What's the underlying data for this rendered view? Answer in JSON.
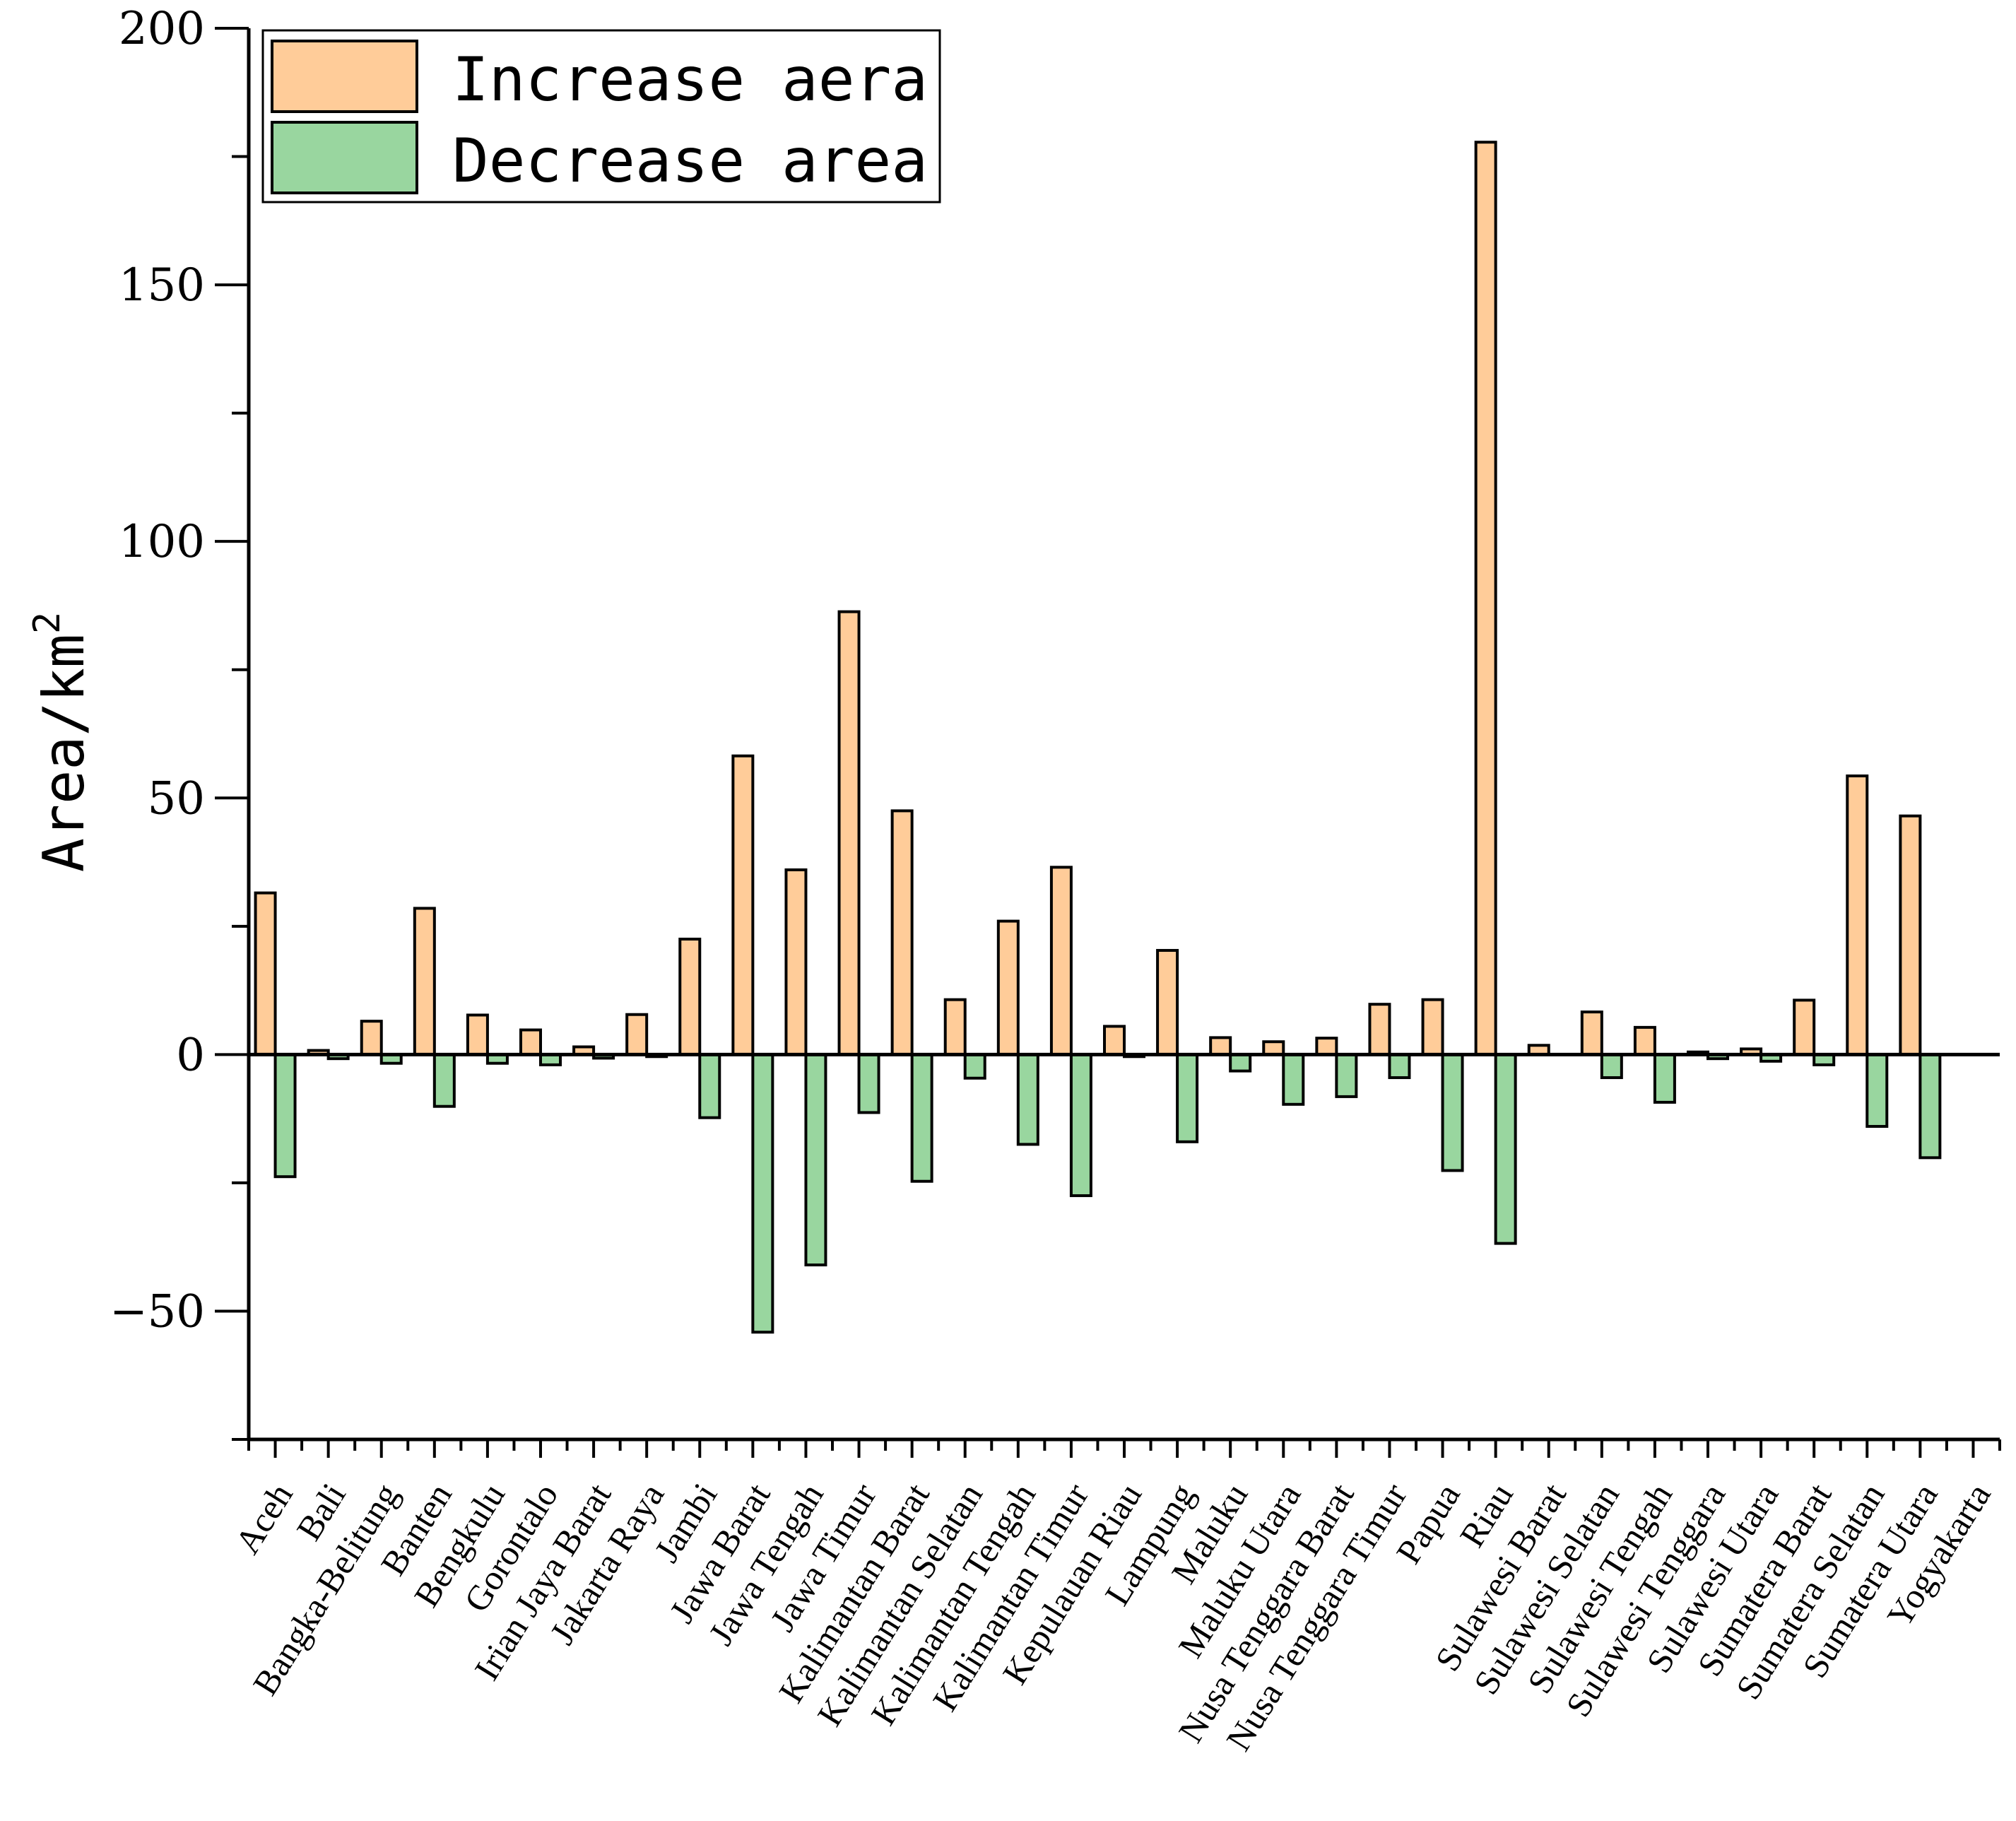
{
  "chart_data": {
    "type": "bar",
    "title": "",
    "xlabel": "",
    "ylabel": "Area/km",
    "ylabel_superscript": "2",
    "ylim": [
      -75,
      200
    ],
    "yticks": [
      -50,
      0,
      50,
      100,
      150,
      200
    ],
    "ytick_labels": [
      "−50",
      "0",
      "50",
      "100",
      "150",
      "200"
    ],
    "legend_position": "top-left",
    "categories": [
      "Aceh",
      "Bali",
      "Bangka-Belitung",
      "Banten",
      "Bengkulu",
      "Gorontalo",
      "Irian Jaya Barat",
      "Jakarta Raya",
      "Jambi",
      "Jawa Barat",
      "Jawa Tengah",
      "Jawa Timur",
      "Kalimantan Barat",
      "Kalimantan Selatan",
      "Kalimantan Tengah",
      "Kalimantan Timur",
      "Kepulauan Riau",
      "Lampung",
      "Maluku",
      "Maluku Utara",
      "Nusa Tenggara Barat",
      "Nusa Tenggara Timur",
      "Papua",
      "Riau",
      "Sulawesi Barat",
      "Sulawesi Selatan",
      "Sulawesi Tengah",
      "Sulawesi Tenggara",
      "Sulawesi Utara",
      "Sumatera Barat",
      "Sumatera Selatan",
      "Sumatera Utara",
      "Yogyakarta"
    ],
    "series": [
      {
        "name": "Increase aera",
        "color": "#FFCC99",
        "values": [
          31.5,
          0.8,
          6.5,
          28.5,
          7.7,
          4.8,
          1.5,
          7.8,
          22.5,
          58.2,
          36.0,
          86.3,
          47.5,
          10.7,
          26.0,
          36.5,
          5.5,
          20.3,
          3.3,
          2.5,
          3.2,
          9.8,
          10.7,
          177.8,
          1.8,
          8.3,
          5.3,
          0.5,
          1.1,
          10.6,
          54.3,
          46.5,
          0
        ]
      },
      {
        "name": "Decrease area",
        "color": "#99D69F",
        "values": [
          -23.8,
          -0.8,
          -1.7,
          -10.1,
          -1.7,
          -2.0,
          -0.7,
          -0.4,
          -12.3,
          -54.1,
          -41.0,
          -11.3,
          -24.7,
          -4.6,
          -17.5,
          -27.5,
          -0.4,
          -17.0,
          -3.2,
          -9.7,
          -8.2,
          -4.5,
          -22.6,
          -36.8,
          0,
          -4.5,
          -9.3,
          -0.8,
          -1.3,
          -2.0,
          -14.0,
          -20.1,
          0
        ]
      }
    ]
  }
}
